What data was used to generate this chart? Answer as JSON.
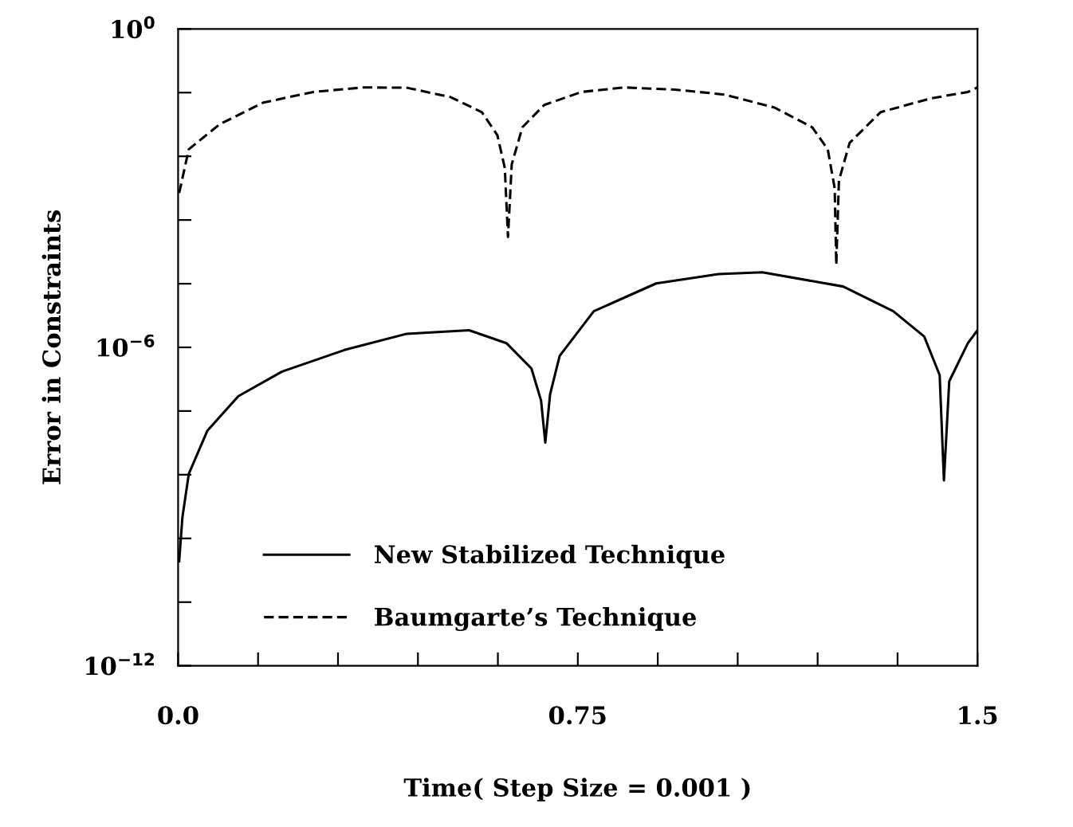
{
  "chart_data": {
    "type": "line",
    "xlabel": "Time( Step Size = 0.001 )",
    "ylabel": "Error in Constraints",
    "log": "y",
    "xlim": [
      0,
      1.5
    ],
    "ylim": [
      1e-12,
      1
    ],
    "xticks": [
      {
        "value": 0,
        "label": "0.0"
      },
      {
        "value": 0.15,
        "label": null
      },
      {
        "value": 0.3,
        "label": null
      },
      {
        "value": 0.45,
        "label": null
      },
      {
        "value": 0.6,
        "label": null
      },
      0.75,
      {
        "value": 0.9,
        "label": null
      },
      {
        "value": 1.05,
        "label": null
      },
      {
        "value": 1.2,
        "label": null
      },
      {
        "value": 1.35,
        "label": null
      },
      1.5
    ],
    "yticks": [
      {
        "value": 1e-12,
        "label": "10$^{−12}$"
      },
      {
        "value": 1.58e-11,
        "label": null
      },
      {
        "value": 2.51e-10,
        "label": null
      },
      {
        "value": 3.98e-09,
        "label": null
      },
      {
        "value": 6.31e-08,
        "label": null
      },
      {
        "value": 1e-06,
        "label": "10$^{−6}$"
      },
      {
        "value": 1.58e-05,
        "label": null
      },
      {
        "value": 0.000251,
        "label": null
      },
      {
        "value": 0.00398,
        "label": null
      },
      {
        "value": 0.0631,
        "label": null
      },
      {
        "value": 1,
        "label": "10$^{0}$"
      }
    ],
    "grid": false,
    "legend": "bottom left",
    "series": [
      {
        "name": "New Stabilized Technique",
        "color": "#000000",
        "line_style": "solid",
        "x": [
          0.002,
          0.008,
          0.02,
          0.055,
          0.113,
          0.195,
          0.312,
          0.429,
          0.546,
          0.616,
          0.663,
          0.681,
          0.689,
          0.698,
          0.716,
          0.78,
          0.897,
          1.014,
          1.096,
          1.248,
          1.342,
          1.4,
          1.429,
          1.437,
          1.447,
          1.482,
          1.5
        ],
        "values": [
          9.3e-11,
          6.2e-10,
          4.1e-09,
          2.7e-08,
          1.2e-07,
          3.5e-07,
          8.9e-07,
          1.8e-06,
          2.1e-06,
          1.2e-06,
          4e-07,
          1e-07,
          1.6e-08,
          1.3e-07,
          6.9e-07,
          4.8e-06,
          1.6e-05,
          2.4e-05,
          2.6e-05,
          1.4e-05,
          4.8e-06,
          1.6e-06,
          3e-07,
          3.1e-09,
          2.3e-07,
          1.2e-06,
          2.1e-06
        ]
      },
      {
        "name": "Baumgarte’s Technique",
        "color": "#000000",
        "line_style": "dashed",
        "x": [
          0.002,
          0.02,
          0.078,
          0.16,
          0.254,
          0.347,
          0.429,
          0.511,
          0.57,
          0.599,
          0.613,
          0.619,
          0.626,
          0.646,
          0.687,
          0.757,
          0.838,
          0.932,
          1.025,
          1.119,
          1.19,
          1.219,
          1.232,
          1.235,
          1.24,
          1.26,
          1.318,
          1.412,
          1.482,
          1.5
        ],
        "values": [
          0.00081,
          0.0054,
          0.016,
          0.041,
          0.065,
          0.079,
          0.078,
          0.052,
          0.027,
          0.01,
          0.0024,
          0.00012,
          0.0028,
          0.014,
          0.037,
          0.065,
          0.079,
          0.072,
          0.058,
          0.033,
          0.014,
          0.0054,
          0.001,
          3.6e-05,
          0.0014,
          0.0071,
          0.027,
          0.049,
          0.065,
          0.079
        ]
      }
    ]
  }
}
